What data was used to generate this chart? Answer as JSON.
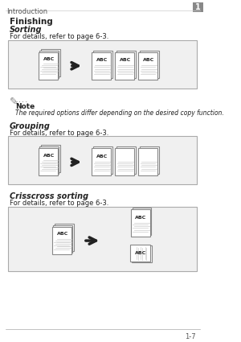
{
  "bg_color": "#ffffff",
  "header_text": "Introduction",
  "header_page": "1",
  "footer_text": "1-7",
  "section_title": "Finishing",
  "sorting_title": "Sorting",
  "sorting_ref": "For details, refer to page 6-3.",
  "grouping_title": "Grouping",
  "grouping_ref": "For details, refer to page 6-3.",
  "crisscross_title": "Crisscross sorting",
  "crisscross_ref": "For details, refer to page 6-3.",
  "note_label": "Note",
  "note_text": "The required options differ depending on the desired copy function.",
  "box_color": "#f0f0f0",
  "box_edge": "#aaaaaa",
  "paper_color": "#ffffff",
  "paper_edge": "#888888",
  "lines_color": "#cccccc",
  "text_color": "#222222",
  "arrow_color": "#222222"
}
